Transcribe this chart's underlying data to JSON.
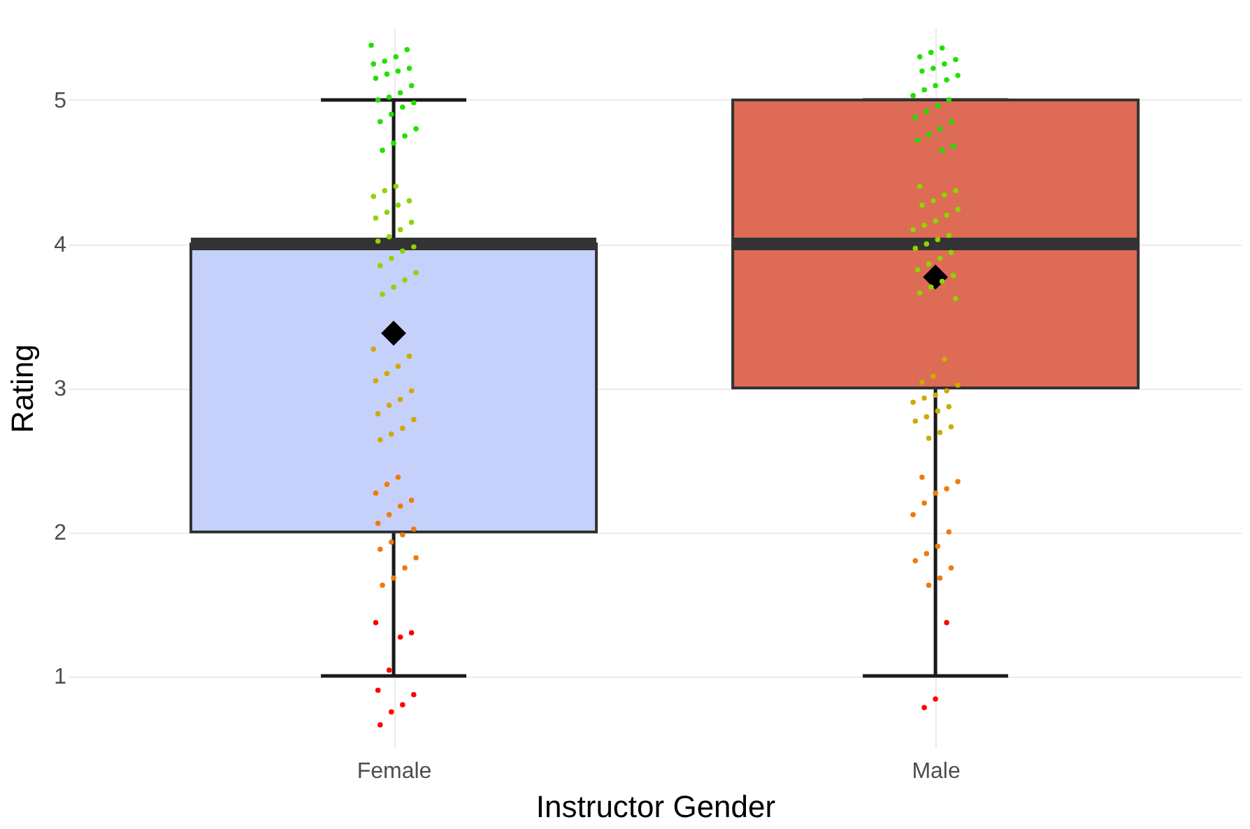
{
  "chart_data": {
    "type": "box",
    "xlabel": "Instructor Gender",
    "ylabel": "Rating",
    "categories": [
      "Female",
      "Male"
    ],
    "colors": [
      "#c5d1fa",
      "#dd6b55"
    ],
    "boxes": [
      {
        "low": 1,
        "q1": 2,
        "median": 4,
        "q3": 4,
        "high": 5,
        "mean": 3.38
      },
      {
        "low": 1,
        "q1": 3,
        "median": 4,
        "q3": 5,
        "high": 5,
        "mean": 3.77
      }
    ],
    "ylim": [
      0.5,
      5.5
    ],
    "yticks": [
      1,
      2,
      3,
      4,
      5
    ],
    "grid": true,
    "series": [
      {
        "type": "scatter",
        "marker": "circle",
        "color": "#22e000",
        "x": [
          "Female",
          "Female",
          "Female",
          "Female",
          "Female",
          "Female",
          "Female",
          "Female",
          "Female",
          "Female",
          "Female",
          "Female",
          "Female",
          "Female",
          "Female",
          "Female",
          "Female",
          "Female",
          "Female",
          "Female",
          "Female"
        ],
        "values": [
          5.38,
          5.35,
          5.3,
          5.27,
          5.25,
          5.22,
          5.2,
          5.18,
          5.15,
          5.1,
          5.05,
          5.02,
          5.0,
          4.98,
          4.95,
          4.9,
          4.85,
          4.8,
          4.75,
          4.7,
          4.65
        ]
      },
      {
        "type": "scatter",
        "marker": "circle",
        "color": "#8fd400",
        "x": [
          "Female",
          "Female",
          "Female",
          "Female",
          "Female",
          "Female",
          "Female",
          "Female",
          "Female",
          "Female",
          "Female",
          "Female",
          "Female",
          "Female",
          "Female",
          "Female",
          "Female",
          "Female",
          "Female"
        ],
        "values": [
          4.4,
          4.37,
          4.33,
          4.3,
          4.27,
          4.22,
          4.18,
          4.15,
          4.1,
          4.05,
          4.02,
          3.98,
          3.95,
          3.9,
          3.85,
          3.8,
          3.75,
          3.7,
          3.65
        ]
      },
      {
        "type": "scatter",
        "marker": "circle",
        "color": "#cfaa00",
        "x": [
          "Female",
          "Female",
          "Female",
          "Female",
          "Female",
          "Female",
          "Female",
          "Female",
          "Female",
          "Female",
          "Female",
          "Female",
          "Female"
        ],
        "values": [
          3.27,
          3.22,
          3.15,
          3.1,
          3.05,
          2.98,
          2.92,
          2.88,
          2.82,
          2.78,
          2.72,
          2.68,
          2.64
        ]
      },
      {
        "type": "scatter",
        "marker": "circle",
        "color": "#ef7a0d",
        "x": [
          "Female",
          "Female",
          "Female",
          "Female",
          "Female",
          "Female",
          "Female",
          "Female",
          "Female",
          "Female",
          "Female",
          "Female",
          "Female",
          "Female",
          "Female"
        ],
        "values": [
          2.38,
          2.33,
          2.27,
          2.22,
          2.18,
          2.12,
          2.06,
          2.02,
          1.98,
          1.93,
          1.88,
          1.82,
          1.75,
          1.68,
          1.63
        ]
      },
      {
        "type": "scatter",
        "marker": "circle",
        "color": "#ff0000",
        "x": [
          "Female",
          "Female",
          "Female",
          "Female",
          "Female",
          "Female",
          "Female",
          "Female",
          "Female"
        ],
        "values": [
          1.37,
          1.3,
          1.27,
          1.04,
          0.9,
          0.87,
          0.8,
          0.75,
          0.66
        ]
      },
      {
        "type": "scatter",
        "marker": "circle",
        "color": "#22e000",
        "x": [
          "Male",
          "Male",
          "Male",
          "Male",
          "Male",
          "Male",
          "Male",
          "Male",
          "Male",
          "Male",
          "Male",
          "Male",
          "Male",
          "Male",
          "Male",
          "Male",
          "Male",
          "Male",
          "Male",
          "Male",
          "Male",
          "Male"
        ],
        "values": [
          5.36,
          5.33,
          5.3,
          5.28,
          5.25,
          5.22,
          5.2,
          5.17,
          5.14,
          5.1,
          5.07,
          5.03,
          5.0,
          4.96,
          4.92,
          4.88,
          4.85,
          4.8,
          4.76,
          4.72,
          4.68,
          4.65
        ]
      },
      {
        "type": "scatter",
        "marker": "circle",
        "color": "#8fd400",
        "x": [
          "Male",
          "Male",
          "Male",
          "Male",
          "Male",
          "Male",
          "Male",
          "Male",
          "Male",
          "Male",
          "Male",
          "Male",
          "Male",
          "Male",
          "Male",
          "Male",
          "Male",
          "Male",
          "Male",
          "Male",
          "Male",
          "Male",
          "Male"
        ],
        "values": [
          4.4,
          4.37,
          4.34,
          4.3,
          4.27,
          4.24,
          4.2,
          4.16,
          4.13,
          4.1,
          4.06,
          4.03,
          4.0,
          3.97,
          3.94,
          3.9,
          3.86,
          3.82,
          3.78,
          3.74,
          3.7,
          3.66,
          3.62
        ]
      },
      {
        "type": "scatter",
        "marker": "circle",
        "color": "#cfaa00",
        "x": [
          "Male",
          "Male",
          "Male",
          "Male",
          "Male",
          "Male",
          "Male",
          "Male",
          "Male",
          "Male",
          "Male",
          "Male",
          "Male",
          "Male",
          "Male"
        ],
        "values": [
          3.2,
          3.08,
          3.04,
          3.02,
          2.98,
          2.95,
          2.93,
          2.9,
          2.87,
          2.84,
          2.8,
          2.77,
          2.73,
          2.69,
          2.65
        ]
      },
      {
        "type": "scatter",
        "marker": "circle",
        "color": "#ef7a0d",
        "x": [
          "Male",
          "Male",
          "Male",
          "Male",
          "Male",
          "Male",
          "Male",
          "Male",
          "Male",
          "Male",
          "Male",
          "Male",
          "Male"
        ],
        "values": [
          2.38,
          2.35,
          2.3,
          2.27,
          2.2,
          2.12,
          2.0,
          1.9,
          1.85,
          1.8,
          1.75,
          1.68,
          1.63
        ]
      },
      {
        "type": "scatter",
        "marker": "circle",
        "color": "#ff0000",
        "x": [
          "Male",
          "Male",
          "Male"
        ],
        "values": [
          1.37,
          0.84,
          0.78
        ]
      }
    ]
  }
}
